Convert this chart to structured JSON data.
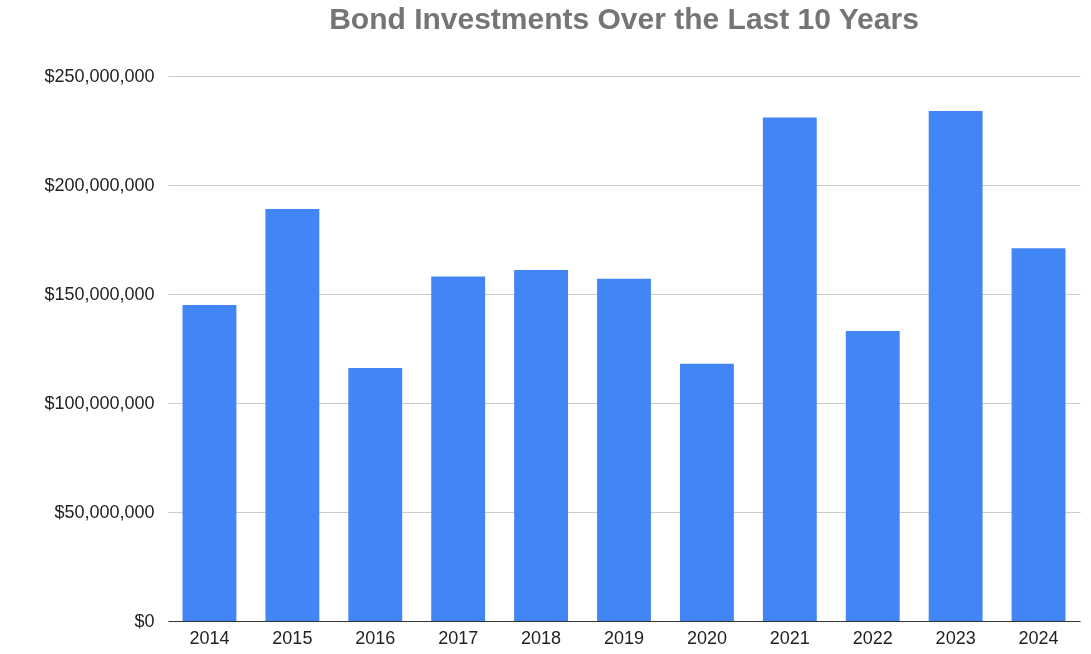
{
  "chart_data": {
    "type": "bar",
    "title": "Bond Investments Over the Last 10 Years",
    "categories": [
      "2014",
      "2015",
      "2016",
      "2017",
      "2018",
      "2019",
      "2020",
      "2021",
      "2022",
      "2023",
      "2024"
    ],
    "values": [
      145000000,
      189000000,
      116000000,
      158000000,
      161000000,
      157000000,
      118000000,
      231000000,
      133000000,
      234000000,
      171000000
    ],
    "color": "#4285f4",
    "ylim": [
      0,
      250000000
    ],
    "yticks": [
      {
        "value": 0,
        "label": "$0"
      },
      {
        "value": 50000000,
        "label": "$50,000,000"
      },
      {
        "value": 100000000,
        "label": "$100,000,000"
      },
      {
        "value": 150000000,
        "label": "$150,000,000"
      },
      {
        "value": 200000000,
        "label": "$200,000,000"
      },
      {
        "value": 250000000,
        "label": "$250,000,000"
      }
    ],
    "grid": "y"
  }
}
